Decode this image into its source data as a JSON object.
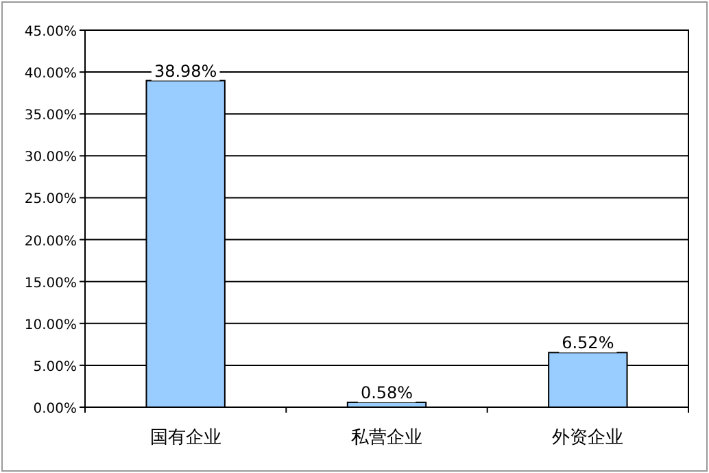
{
  "chart_data": {
    "type": "bar",
    "categories": [
      "国有企业",
      "私营企业",
      "外资企业"
    ],
    "series": [
      {
        "color": "#99ccff",
        "values": [
          38.98,
          0.58,
          6.52
        ],
        "value_labels": [
          "38.98%",
          "0.58%",
          "6.52%"
        ]
      }
    ],
    "ylim": [
      0,
      45
    ],
    "yticks": [
      {
        "value": 0,
        "label": "0.00%"
      },
      {
        "value": 5,
        "label": "5.00%"
      },
      {
        "value": 10,
        "label": "10.00%"
      },
      {
        "value": 15,
        "label": "15.00%"
      },
      {
        "value": 20,
        "label": "20.00%"
      },
      {
        "value": 25,
        "label": "25.00%"
      },
      {
        "value": 30,
        "label": "30.00%"
      },
      {
        "value": 35,
        "label": "35.00%"
      },
      {
        "value": 40,
        "label": "40.00%"
      },
      {
        "value": 45,
        "label": "45.00%"
      }
    ],
    "grid": "y"
  }
}
